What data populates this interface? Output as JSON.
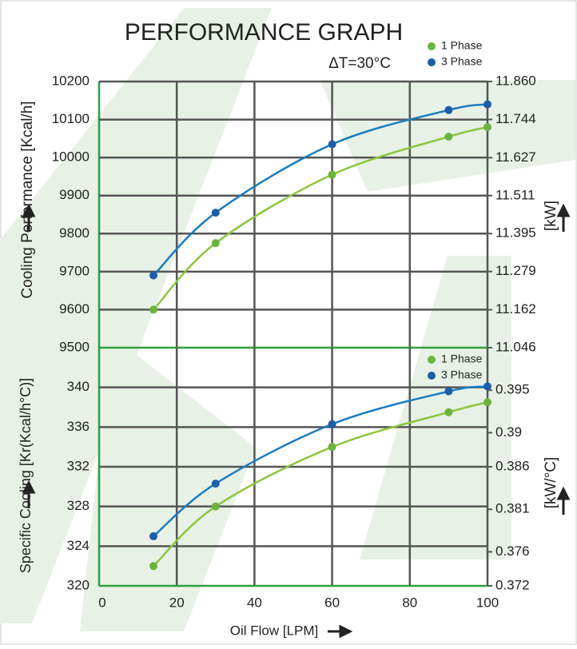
{
  "chart_data": [
    {
      "type": "line",
      "title": "PERFORMANCE GRAPH",
      "annotation": "ΔT=30°C",
      "ylabel": "Cooling Performance [Kcal/h]",
      "y2label": "[kW]",
      "x": [
        14,
        30,
        60,
        90,
        100
      ],
      "xlim": [
        0,
        100
      ],
      "xticks": [
        0,
        20,
        40,
        60,
        80,
        100
      ],
      "ylim": [
        9500,
        10200
      ],
      "yticks": [
        9500,
        9600,
        9700,
        9800,
        9900,
        10000,
        10100,
        10200
      ],
      "y2lim": [
        11.046,
        11.86
      ],
      "y2ticks": [
        11.046,
        11.162,
        11.279,
        11.395,
        11.511,
        11.627,
        11.744,
        {
          "value": 11.86,
          "label": "11.860"
        }
      ],
      "grid": true,
      "series": [
        {
          "name": "1 Phase",
          "color": "#8cc63f",
          "values": [
            9600,
            9775,
            9955,
            10055,
            10080
          ]
        },
        {
          "name": "3 Phase",
          "color": "#1a7cc1",
          "values": [
            9690,
            9855,
            10035,
            10125,
            10140
          ]
        }
      ]
    },
    {
      "type": "line",
      "ylabel": "Specific Cooling [Kr(Kcal/h°C)]",
      "y2label": "[kW/°C]",
      "xlabel": "Oil Flow [LPM]",
      "x": [
        14,
        30,
        60,
        90,
        100
      ],
      "xlim": [
        0,
        100
      ],
      "xticks": [
        0,
        20,
        40,
        60,
        80,
        100
      ],
      "ylim": [
        320,
        344
      ],
      "yticks": [
        320,
        324,
        328,
        332,
        336,
        340
      ],
      "y2lim": [
        0.372,
        0.4
      ],
      "y2ticks": [
        0.372,
        0.376,
        0.381,
        0.386,
        0.39,
        0.395
      ],
      "grid": true,
      "series": [
        {
          "name": "1 Phase",
          "color": "#8cc63f",
          "values": [
            322,
            328,
            334,
            337.5,
            338.5
          ]
        },
        {
          "name": "3 Phase",
          "color": "#1a7cc1",
          "values": [
            325,
            330.3,
            336.3,
            339.6,
            340.1
          ]
        }
      ]
    }
  ]
}
